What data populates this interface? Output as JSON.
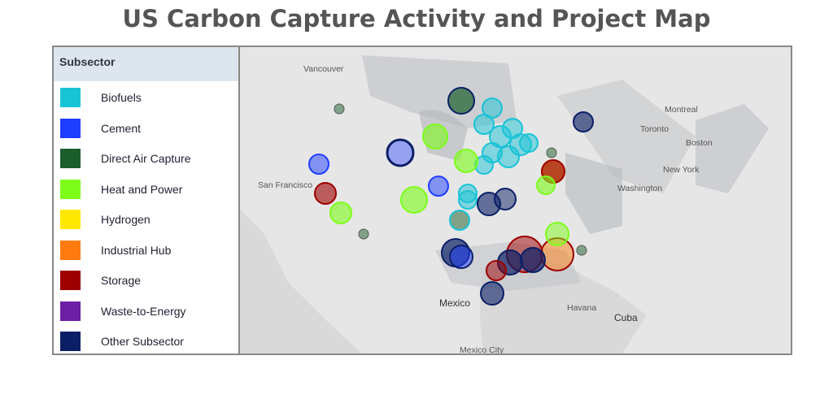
{
  "title": "US Carbon Capture Activity and Project Map",
  "legend": {
    "header": "Subsector",
    "items": [
      {
        "name": "Biofuels",
        "color": "#19c3d6"
      },
      {
        "name": "Cement",
        "color": "#1f3dff"
      },
      {
        "name": "Direct Air Capture",
        "color": "#1b5e2b"
      },
      {
        "name": "Heat and Power",
        "color": "#7dfc1a"
      },
      {
        "name": "Hydrogen",
        "color": "#ffe800"
      },
      {
        "name": "Industrial Hub",
        "color": "#ff7b0f"
      },
      {
        "name": "Storage",
        "color": "#9e0000"
      },
      {
        "name": "Waste-to-Energy",
        "color": "#6d1fa6"
      },
      {
        "name": "Other Subsector",
        "color": "#0b1f66"
      }
    ]
  },
  "map_labels": [
    "Vancouver",
    "Montreal",
    "Toronto",
    "Boston",
    "New York",
    "Washington",
    "San Francisco",
    "Mexico",
    "Havana",
    "Cuba",
    "Mexico City"
  ]
}
